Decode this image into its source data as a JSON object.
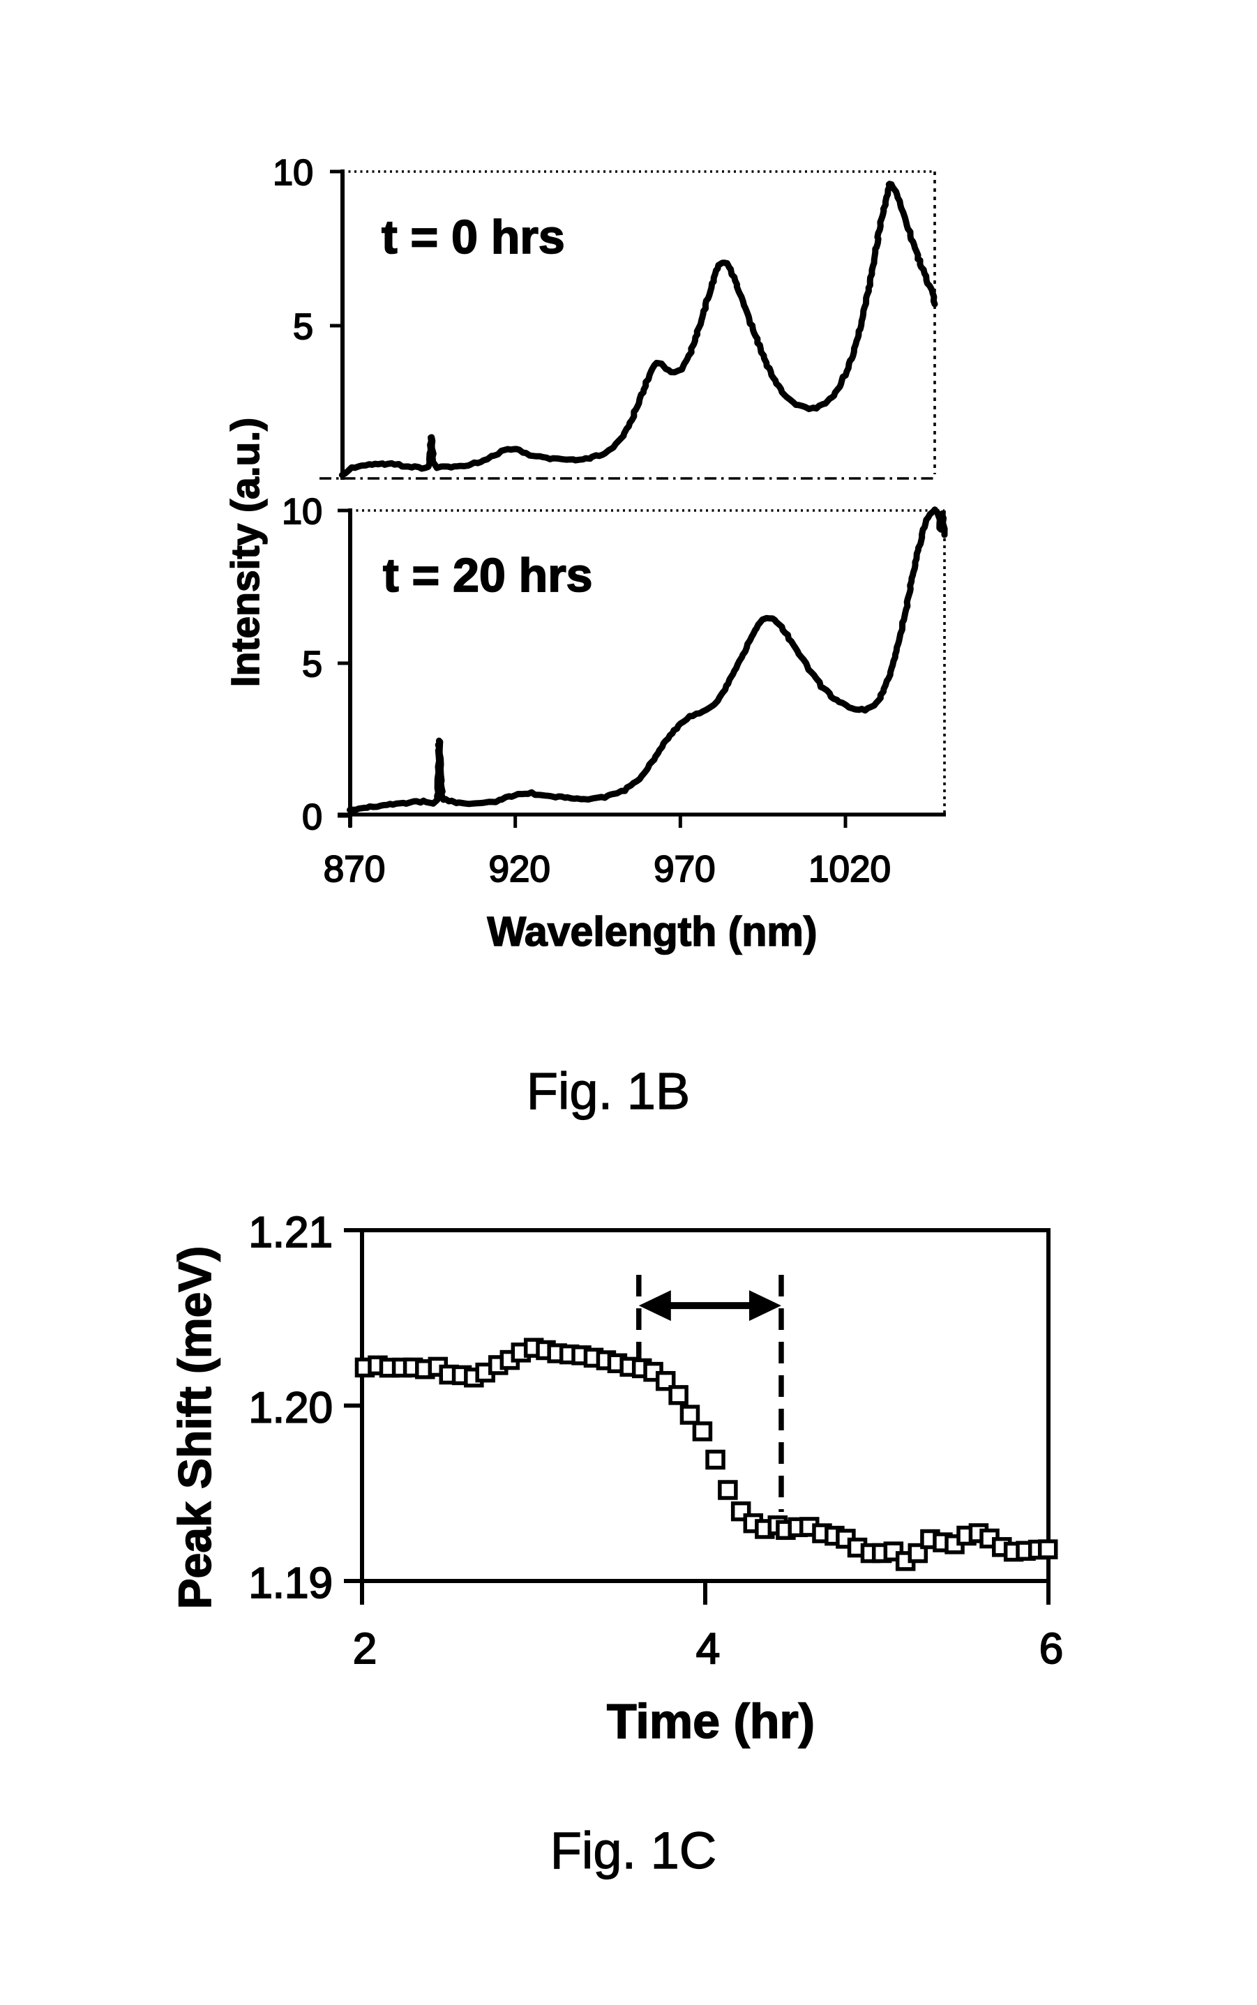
{
  "page": {
    "background": "#ffffff",
    "ink_color": "#000000"
  },
  "fig1b": {
    "caption": "Fig. 1B",
    "ylabel": "Intensity (a.u.)",
    "xlabel": "Wavelength (nm)",
    "panel_top": {
      "annotation": "t = 0 hrs",
      "ytick_labels": [
        "10",
        "5"
      ]
    },
    "panel_bottom": {
      "annotation": "t = 20 hrs",
      "ytick_labels": [
        "10",
        "5",
        "0"
      ]
    },
    "xtick_labels": [
      "870",
      "920",
      "970",
      "1020"
    ]
  },
  "fig1c": {
    "caption": "Fig. 1C",
    "ylabel": "Peak Shift (meV)",
    "xlabel": "Time (hr)",
    "ytick_labels": [
      "1.21",
      "1.20",
      "1.19"
    ],
    "xtick_labels": [
      "2",
      "4",
      "6"
    ]
  },
  "chart_data": [
    {
      "type": "line",
      "id": "fig1b-top-panel",
      "title": "t = 0 hrs",
      "xlabel": "Wavelength (nm)",
      "ylabel": "Intensity (a.u.)",
      "xlim": [
        870,
        1050
      ],
      "ylim": [
        0,
        10
      ],
      "yticks": [
        10,
        5
      ],
      "grid": false,
      "series": [
        {
          "name": "t = 0 hrs",
          "x": [
            870,
            872,
            874,
            878,
            882,
            886,
            890,
            893,
            896.2,
            897,
            897.8,
            900,
            904,
            908,
            912,
            916,
            919,
            922,
            925,
            928,
            932,
            936,
            940,
            944,
            948,
            951,
            954,
            957,
            960,
            962,
            964,
            965.5,
            967,
            969,
            971,
            973,
            975,
            977,
            979,
            981,
            983,
            984.5,
            986,
            987.5,
            989,
            991,
            994,
            997,
            1000,
            1003,
            1006,
            1009,
            1012,
            1015,
            1018,
            1021,
            1024,
            1027,
            1029,
            1031,
            1033,
            1035,
            1036.5,
            1038,
            1040,
            1042,
            1044,
            1046,
            1048,
            1049.5,
            1050
          ],
          "y": [
            0.18,
            0.32,
            0.42,
            0.5,
            0.52,
            0.5,
            0.42,
            0.42,
            0.45,
            1.4,
            0.5,
            0.42,
            0.42,
            0.48,
            0.6,
            0.8,
            0.95,
            1.0,
            0.9,
            0.78,
            0.7,
            0.66,
            0.65,
            0.68,
            0.8,
            0.95,
            1.25,
            1.75,
            2.5,
            3.05,
            3.6,
            3.8,
            3.75,
            3.55,
            3.5,
            3.6,
            3.95,
            4.5,
            5.15,
            5.9,
            6.55,
            6.95,
            7.05,
            6.9,
            6.55,
            6.0,
            5.1,
            4.25,
            3.5,
            2.95,
            2.6,
            2.4,
            2.32,
            2.38,
            2.6,
            3.05,
            3.75,
            4.8,
            5.7,
            6.8,
            8.0,
            9.0,
            9.62,
            9.35,
            8.8,
            8.15,
            7.5,
            6.9,
            6.4,
            6.05,
            5.7
          ]
        }
      ]
    },
    {
      "type": "line",
      "id": "fig1b-bottom-panel",
      "title": "t = 20 hrs",
      "xlabel": "Wavelength (nm)",
      "ylabel": "Intensity (a.u.)",
      "xlim": [
        870,
        1050
      ],
      "ylim": [
        0,
        10
      ],
      "yticks": [
        10,
        5,
        0
      ],
      "xticks": [
        870,
        920,
        970,
        1020
      ],
      "grid": false,
      "series": [
        {
          "name": "t = 20 hrs",
          "x": [
            870,
            874,
            878,
            882,
            886,
            890,
            893,
            896.2,
            897,
            897.8,
            899,
            902,
            906,
            910,
            914,
            918,
            921,
            924,
            927,
            931,
            935,
            939,
            943,
            947,
            950,
            953,
            956,
            959,
            962,
            965,
            968,
            971,
            974,
            977,
            980,
            983,
            986,
            989,
            992,
            994,
            996,
            998,
            1000,
            1003,
            1006,
            1009,
            1012,
            1015,
            1018,
            1021,
            1024,
            1027,
            1030,
            1033,
            1035,
            1037,
            1039,
            1041,
            1043,
            1045,
            1046.5,
            1048,
            1048.8,
            1049.4,
            1050
          ],
          "y": [
            0.18,
            0.25,
            0.32,
            0.36,
            0.42,
            0.46,
            0.48,
            0.55,
            2.45,
            0.7,
            0.55,
            0.45,
            0.4,
            0.4,
            0.48,
            0.62,
            0.72,
            0.75,
            0.7,
            0.63,
            0.6,
            0.58,
            0.57,
            0.62,
            0.7,
            0.85,
            1.05,
            1.4,
            1.85,
            2.35,
            2.8,
            3.1,
            3.3,
            3.42,
            3.6,
            4.05,
            4.65,
            5.3,
            5.95,
            6.3,
            6.48,
            6.45,
            6.25,
            5.8,
            5.3,
            4.8,
            4.35,
            4.0,
            3.75,
            3.57,
            3.48,
            3.52,
            3.8,
            4.5,
            5.2,
            6.1,
            7.1,
            8.2,
            9.1,
            9.75,
            9.97,
            9.95,
            9.4,
            9.9,
            9.2
          ]
        }
      ]
    },
    {
      "type": "scatter",
      "id": "fig1c-peak-shift",
      "title": "Peak Shift vs Time",
      "xlabel": "Time (hr)",
      "ylabel": "Peak Shift (meV)",
      "xlim": [
        2,
        6
      ],
      "ylim": [
        1.19,
        1.21
      ],
      "xticks": [
        2,
        4,
        6
      ],
      "yticks": [
        1.21,
        1.2,
        1.19
      ],
      "marker": "open-square",
      "grid": false,
      "x": [
        2.02,
        2.09,
        2.16,
        2.23,
        2.3,
        2.37,
        2.44,
        2.51,
        2.58,
        2.65,
        2.72,
        2.79,
        2.86,
        2.93,
        3.0,
        3.07,
        3.14,
        3.21,
        3.28,
        3.35,
        3.42,
        3.49,
        3.56,
        3.63,
        3.7,
        3.77,
        3.84,
        3.91,
        3.98,
        4.06,
        4.13,
        4.21,
        4.28,
        4.35,
        4.42,
        4.47,
        4.54,
        4.61,
        4.68,
        4.75,
        4.82,
        4.89,
        4.96,
        5.03,
        5.1,
        5.17,
        5.24,
        5.31,
        5.38,
        5.45,
        5.52,
        5.59,
        5.66,
        5.73,
        5.8,
        5.87,
        5.94,
        6.0
      ],
      "y": [
        1.2022,
        1.2023,
        1.2022,
        1.2022,
        1.2022,
        1.2021,
        1.2022,
        1.2018,
        1.2017,
        1.2016,
        1.2019,
        1.2023,
        1.2026,
        1.203,
        1.2033,
        1.2032,
        1.203,
        1.2029,
        1.2029,
        1.2027,
        1.2026,
        1.2024,
        1.2022,
        1.2021,
        1.2019,
        1.2014,
        1.2006,
        1.1995,
        1.1985,
        1.1969,
        1.1952,
        1.194,
        1.1933,
        1.193,
        1.1932,
        1.1929,
        1.1931,
        1.1931,
        1.1927,
        1.1926,
        1.1924,
        1.1919,
        1.1916,
        1.1916,
        1.1917,
        1.1911,
        1.1916,
        1.1924,
        1.1922,
        1.1921,
        1.1926,
        1.1927,
        1.1924,
        1.1919,
        1.1917,
        1.1917,
        1.1918,
        1.1918
      ],
      "annotations": {
        "dashed_vlines_t": [
          3.613,
          4.443
        ],
        "double_arrow": {
          "from_t": 3.613,
          "to_t": 4.443,
          "y": 1.2057
        }
      }
    }
  ]
}
